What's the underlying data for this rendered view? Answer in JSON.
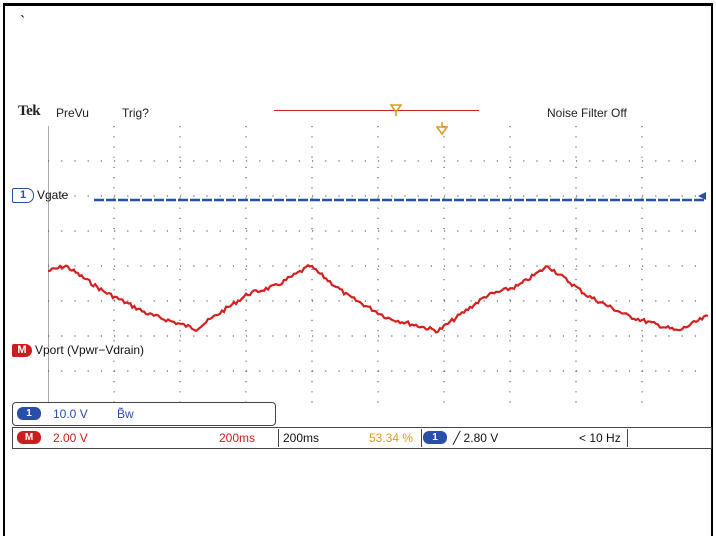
{
  "page": {
    "mark": "`"
  },
  "header": {
    "brand": "Tek",
    "acq_status": "PreVu",
    "trigger_status": "Trig?",
    "noise_filter": "Noise Filter Off"
  },
  "channels": {
    "ch1": {
      "number": "1",
      "name": "Vgate",
      "color": "#2a4fa8"
    },
    "math": {
      "tag": "M",
      "name": "Vport (Vpwr−Vdrain)",
      "color": "#c81e1e"
    }
  },
  "readout": {
    "ch1_badge": "1",
    "ch1_scale": "10.0 V",
    "ch1_bw": "B̃w",
    "math_badge": "M",
    "math_scale": "2.00 V",
    "math_time": "200ms",
    "timebase": "200ms",
    "trigger_position": "53.34 %",
    "trigger_badge": "1",
    "trigger_level": "╱ 2.80 V",
    "trigger_freq": "< 10 Hz"
  },
  "colors": {
    "trace_red": "#d42020",
    "trace_blue": "#2a4fa8",
    "trigger_orange": "#e09a20"
  }
}
